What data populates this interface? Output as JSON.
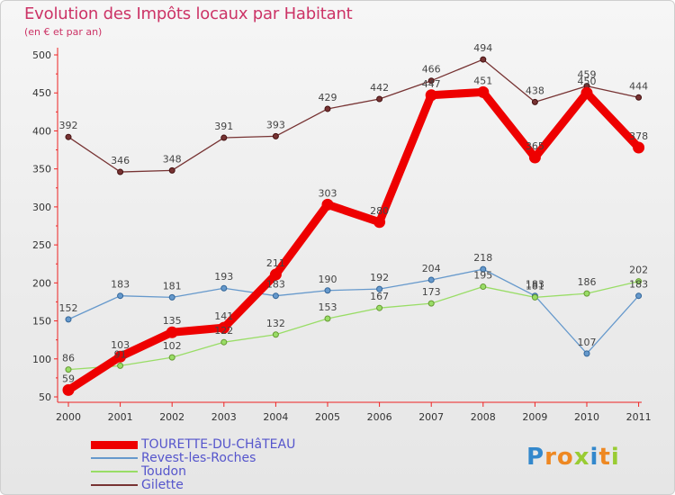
{
  "chart_data": {
    "type": "line",
    "title": "Evolution des Impôts locaux par Habitant",
    "subtitle": "(en € et par an)",
    "xlabel": "",
    "ylabel": "",
    "categories": [
      "2000",
      "2001",
      "2002",
      "2003",
      "2004",
      "2005",
      "2006",
      "2007",
      "2008",
      "2009",
      "2010",
      "2011"
    ],
    "ylim": [
      50,
      500
    ],
    "yticks": [
      "50",
      "100",
      "150",
      "200",
      "250",
      "300",
      "350",
      "400",
      "450",
      "500"
    ],
    "grid": false,
    "legend_position": "bottom-left",
    "series": [
      {
        "name": "TOURETTE-DU-CHâTEAU",
        "color": "#ee0000",
        "values": [
          59,
          103,
          135,
          141,
          211,
          303,
          280,
          447,
          451,
          365,
          450,
          378
        ],
        "labels": [
          "59",
          "103",
          "135",
          "141",
          "211",
          "303",
          "280",
          "447",
          "451",
          "365",
          "450",
          "378"
        ]
      },
      {
        "name": "Revest-les-Roches",
        "color": "#6699cc",
        "values": [
          152,
          183,
          181,
          193,
          183,
          190,
          192,
          204,
          218,
          183,
          107,
          183
        ],
        "labels": [
          "152",
          "183",
          "181",
          "193",
          "183",
          "190",
          "192",
          "204",
          "218",
          "183",
          "107",
          "183"
        ]
      },
      {
        "name": "Toudon",
        "color": "#99dd66",
        "values": [
          86,
          91,
          102,
          122,
          132,
          153,
          167,
          173,
          195,
          181,
          186,
          202
        ],
        "labels": [
          "86",
          "91",
          "102",
          "122",
          "132",
          "153",
          "167",
          "173",
          "195",
          "181",
          "186",
          "202"
        ]
      },
      {
        "name": "Gilette",
        "color": "#773333",
        "values": [
          392,
          346,
          348,
          391,
          393,
          429,
          442,
          466,
          494,
          438,
          459,
          444
        ],
        "labels": [
          "392",
          "346",
          "348",
          "391",
          "393",
          "429",
          "442",
          "466",
          "494",
          "438",
          "459",
          "444"
        ]
      }
    ]
  },
  "logo": {
    "letters": [
      "P",
      "r",
      "o",
      "x",
      "i",
      "t",
      "i"
    ],
    "colors": [
      "#3388cc",
      "#ee8822",
      "#ee8822",
      "#99cc33",
      "#3388cc",
      "#ee8822",
      "#99cc33"
    ]
  }
}
